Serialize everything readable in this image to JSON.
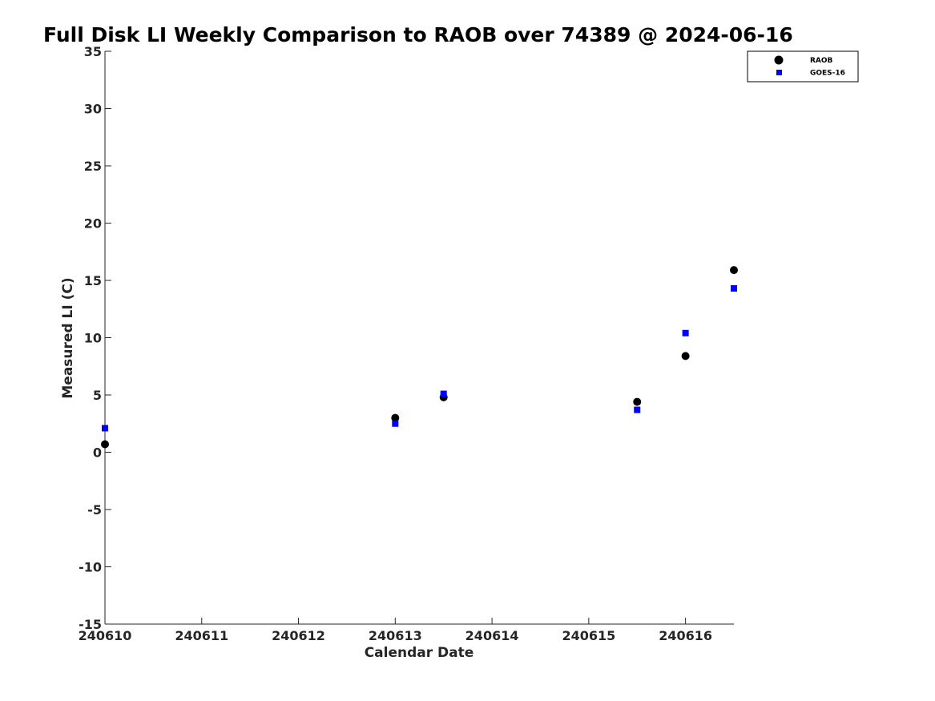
{
  "chart_data": {
    "type": "scatter",
    "title": "Full Disk LI Weekly Comparison to RAOB over 74389 @ 2024-06-16",
    "xlabel": "Calendar Date",
    "ylabel": "Measured LI (C)",
    "x_ticks": [
      {
        "value": 240610,
        "label": "240610"
      },
      {
        "value": 240611,
        "label": "240611"
      },
      {
        "value": 240612,
        "label": "240612"
      },
      {
        "value": 240613,
        "label": "240613"
      },
      {
        "value": 240614,
        "label": "240614"
      },
      {
        "value": 240615,
        "label": "240615"
      },
      {
        "value": 240616,
        "label": "240616"
      }
    ],
    "y_ticks": [
      {
        "value": 35,
        "label": "35"
      },
      {
        "value": 30,
        "label": "30"
      },
      {
        "value": 25,
        "label": "25"
      },
      {
        "value": 20,
        "label": "20"
      },
      {
        "value": 15,
        "label": "15"
      },
      {
        "value": 10,
        "label": "10"
      },
      {
        "value": 5,
        "label": "5"
      },
      {
        "value": 0,
        "label": "0"
      },
      {
        "value": -5,
        "label": "-5"
      },
      {
        "value": -10,
        "label": "-10"
      },
      {
        "value": -15,
        "label": "-15"
      }
    ],
    "xlim": [
      240610,
      240616.5
    ],
    "ylim": [
      -15,
      35
    ],
    "grid": false,
    "legend_position": "top-right",
    "series": [
      {
        "name": "RAOB",
        "marker": "circle",
        "color": "#000000",
        "points": [
          {
            "x": 240610.0,
            "y": 0.7
          },
          {
            "x": 240613.0,
            "y": 3.0
          },
          {
            "x": 240613.5,
            "y": 4.8
          },
          {
            "x": 240615.5,
            "y": 4.4
          },
          {
            "x": 240616.0,
            "y": 8.4
          },
          {
            "x": 240616.5,
            "y": 15.9
          }
        ]
      },
      {
        "name": "GOES-16",
        "marker": "square",
        "color": "#0000ff",
        "points": [
          {
            "x": 240610.0,
            "y": 2.1
          },
          {
            "x": 240613.0,
            "y": 2.5
          },
          {
            "x": 240613.5,
            "y": 5.1
          },
          {
            "x": 240615.5,
            "y": 3.7
          },
          {
            "x": 240616.0,
            "y": 10.4
          },
          {
            "x": 240616.5,
            "y": 14.3
          }
        ]
      }
    ]
  }
}
